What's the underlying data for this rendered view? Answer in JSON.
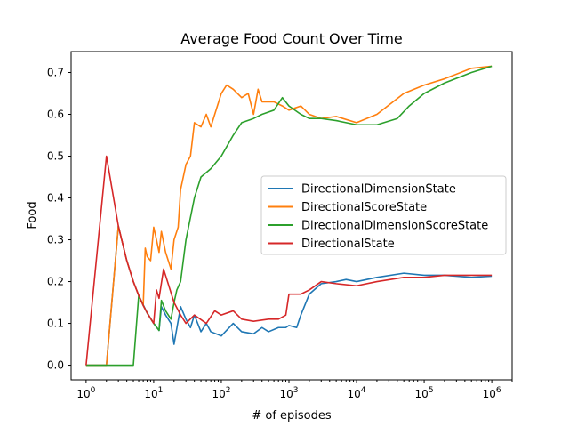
{
  "chart_data": {
    "type": "line",
    "title": "Average Food Count Over Time",
    "xlabel": "# of episodes",
    "ylabel": "Food",
    "xscale": "log",
    "xlim": [
      0.6,
      2000000
    ],
    "ylim": [
      -0.035,
      0.75
    ],
    "x_ticks": [
      {
        "value": 1,
        "base": "10",
        "exp": "0"
      },
      {
        "value": 10,
        "base": "10",
        "exp": "1"
      },
      {
        "value": 100,
        "base": "10",
        "exp": "2"
      },
      {
        "value": 1000,
        "base": "10",
        "exp": "3"
      },
      {
        "value": 10000,
        "base": "10",
        "exp": "4"
      },
      {
        "value": 100000,
        "base": "10",
        "exp": "5"
      },
      {
        "value": 1000000,
        "base": "10",
        "exp": "6"
      }
    ],
    "y_ticks": [
      {
        "value": 0.0,
        "label": "0.0"
      },
      {
        "value": 0.1,
        "label": "0.1"
      },
      {
        "value": 0.2,
        "label": "0.2"
      },
      {
        "value": 0.3,
        "label": "0.3"
      },
      {
        "value": 0.4,
        "label": "0.4"
      },
      {
        "value": 0.5,
        "label": "0.5"
      },
      {
        "value": 0.6,
        "label": "0.6"
      },
      {
        "value": 0.7,
        "label": "0.7"
      }
    ],
    "grid": false,
    "legend_position": "center-right",
    "series": [
      {
        "name": "DirectionalDimensionState",
        "color": "#1f77b4",
        "points": [
          [
            1,
            0
          ],
          [
            2,
            0
          ],
          [
            3,
            0.333
          ],
          [
            4,
            0.25
          ],
          [
            5,
            0.2
          ],
          [
            6,
            0.167
          ],
          [
            8,
            0.125
          ],
          [
            10,
            0.1
          ],
          [
            12,
            0.083
          ],
          [
            13,
            0.14
          ],
          [
            15,
            0.12
          ],
          [
            18,
            0.1
          ],
          [
            20,
            0.05
          ],
          [
            25,
            0.14
          ],
          [
            30,
            0.11
          ],
          [
            35,
            0.09
          ],
          [
            40,
            0.12
          ],
          [
            50,
            0.08
          ],
          [
            60,
            0.1
          ],
          [
            70,
            0.08
          ],
          [
            100,
            0.07
          ],
          [
            150,
            0.1
          ],
          [
            200,
            0.08
          ],
          [
            300,
            0.075
          ],
          [
            400,
            0.09
          ],
          [
            500,
            0.08
          ],
          [
            700,
            0.09
          ],
          [
            900,
            0.09
          ],
          [
            1000,
            0.095
          ],
          [
            1300,
            0.09
          ],
          [
            1500,
            0.12
          ],
          [
            2000,
            0.17
          ],
          [
            3000,
            0.195
          ],
          [
            5000,
            0.2
          ],
          [
            7000,
            0.205
          ],
          [
            10000,
            0.2
          ],
          [
            20000,
            0.21
          ],
          [
            50000,
            0.22
          ],
          [
            100000,
            0.215
          ],
          [
            200000,
            0.215
          ],
          [
            500000,
            0.21
          ],
          [
            1000000,
            0.213
          ]
        ]
      },
      {
        "name": "DirectionalScoreState",
        "color": "#ff7f0e",
        "points": [
          [
            1,
            0
          ],
          [
            2,
            0
          ],
          [
            3,
            0.333
          ],
          [
            4,
            0.25
          ],
          [
            5,
            0.2
          ],
          [
            6,
            0.167
          ],
          [
            7,
            0.143
          ],
          [
            7.5,
            0.28
          ],
          [
            8,
            0.26
          ],
          [
            9,
            0.25
          ],
          [
            10,
            0.33
          ],
          [
            11,
            0.3
          ],
          [
            12,
            0.27
          ],
          [
            13,
            0.32
          ],
          [
            15,
            0.27
          ],
          [
            18,
            0.23
          ],
          [
            20,
            0.3
          ],
          [
            23,
            0.33
          ],
          [
            25,
            0.42
          ],
          [
            30,
            0.48
          ],
          [
            35,
            0.5
          ],
          [
            40,
            0.58
          ],
          [
            50,
            0.57
          ],
          [
            60,
            0.6
          ],
          [
            70,
            0.57
          ],
          [
            80,
            0.6
          ],
          [
            100,
            0.65
          ],
          [
            120,
            0.67
          ],
          [
            150,
            0.66
          ],
          [
            200,
            0.64
          ],
          [
            250,
            0.65
          ],
          [
            300,
            0.6
          ],
          [
            350,
            0.66
          ],
          [
            400,
            0.63
          ],
          [
            600,
            0.63
          ],
          [
            800,
            0.62
          ],
          [
            1000,
            0.61
          ],
          [
            1500,
            0.62
          ],
          [
            2000,
            0.6
          ],
          [
            3000,
            0.59
          ],
          [
            5000,
            0.595
          ],
          [
            10000,
            0.58
          ],
          [
            20000,
            0.6
          ],
          [
            50000,
            0.65
          ],
          [
            100000,
            0.67
          ],
          [
            200000,
            0.685
          ],
          [
            500000,
            0.71
          ],
          [
            1000000,
            0.715
          ]
        ]
      },
      {
        "name": "DirectionalDimensionScoreState",
        "color": "#2ca02c",
        "points": [
          [
            1,
            0
          ],
          [
            2,
            0
          ],
          [
            3,
            0
          ],
          [
            5,
            0
          ],
          [
            6,
            0.167
          ],
          [
            7,
            0.143
          ],
          [
            8,
            0.125
          ],
          [
            10,
            0.1
          ],
          [
            12,
            0.083
          ],
          [
            13,
            0.155
          ],
          [
            15,
            0.13
          ],
          [
            18,
            0.11
          ],
          [
            20,
            0.15
          ],
          [
            22,
            0.18
          ],
          [
            25,
            0.2
          ],
          [
            30,
            0.3
          ],
          [
            40,
            0.4
          ],
          [
            50,
            0.45
          ],
          [
            70,
            0.47
          ],
          [
            100,
            0.5
          ],
          [
            150,
            0.55
          ],
          [
            200,
            0.58
          ],
          [
            300,
            0.59
          ],
          [
            400,
            0.6
          ],
          [
            600,
            0.61
          ],
          [
            800,
            0.64
          ],
          [
            1000,
            0.62
          ],
          [
            1500,
            0.6
          ],
          [
            2000,
            0.59
          ],
          [
            3000,
            0.59
          ],
          [
            5000,
            0.585
          ],
          [
            10000,
            0.575
          ],
          [
            20000,
            0.575
          ],
          [
            40000,
            0.59
          ],
          [
            60000,
            0.62
          ],
          [
            100000,
            0.65
          ],
          [
            200000,
            0.675
          ],
          [
            500000,
            0.7
          ],
          [
            1000000,
            0.715
          ]
        ]
      },
      {
        "name": "DirectionalState",
        "color": "#d62728",
        "points": [
          [
            1,
            0
          ],
          [
            2,
            0.5
          ],
          [
            3,
            0.333
          ],
          [
            4,
            0.25
          ],
          [
            5,
            0.2
          ],
          [
            6,
            0.167
          ],
          [
            7,
            0.143
          ],
          [
            8,
            0.125
          ],
          [
            10,
            0.1
          ],
          [
            11,
            0.18
          ],
          [
            12,
            0.16
          ],
          [
            14,
            0.23
          ],
          [
            16,
            0.2
          ],
          [
            20,
            0.15
          ],
          [
            25,
            0.12
          ],
          [
            30,
            0.1
          ],
          [
            40,
            0.12
          ],
          [
            60,
            0.1
          ],
          [
            80,
            0.13
          ],
          [
            100,
            0.12
          ],
          [
            150,
            0.13
          ],
          [
            200,
            0.11
          ],
          [
            300,
            0.105
          ],
          [
            500,
            0.11
          ],
          [
            700,
            0.11
          ],
          [
            900,
            0.12
          ],
          [
            1000,
            0.17
          ],
          [
            1500,
            0.17
          ],
          [
            2000,
            0.18
          ],
          [
            3000,
            0.2
          ],
          [
            5000,
            0.195
          ],
          [
            10000,
            0.19
          ],
          [
            20000,
            0.2
          ],
          [
            50000,
            0.21
          ],
          [
            100000,
            0.21
          ],
          [
            200000,
            0.215
          ],
          [
            500000,
            0.215
          ],
          [
            1000000,
            0.215
          ]
        ]
      }
    ]
  }
}
